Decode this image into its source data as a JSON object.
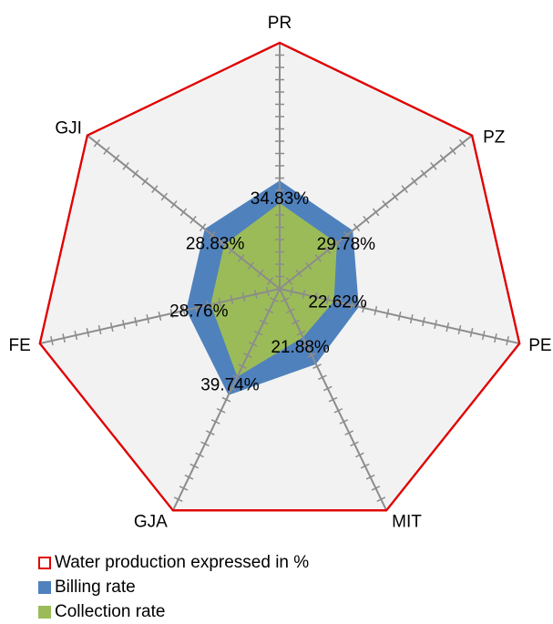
{
  "chart_data": {
    "type": "radar",
    "categories": [
      "PR",
      "PZ",
      "PE",
      "MIT",
      "GJA",
      "FE",
      "GJI"
    ],
    "max": 100,
    "tick_step": 5,
    "series": [
      {
        "name": "Water production expressed in %",
        "values": [
          100,
          100,
          100,
          100,
          100,
          100,
          100
        ],
        "style": "outline",
        "color": "#e00000"
      },
      {
        "name": "Billing rate",
        "values": [
          44,
          38,
          33,
          34,
          48,
          39,
          39
        ],
        "style": "fill",
        "color": "#4f81bd"
      },
      {
        "name": "Collection rate",
        "values": [
          34.83,
          29.78,
          22.62,
          21.88,
          39.74,
          28.76,
          28.83
        ],
        "style": "fill",
        "color": "#9bbb59"
      }
    ],
    "data_labels": [
      "34.83%",
      "29.78%",
      "22.62%",
      "21.88%",
      "39.74%",
      "28.76%",
      "28.83%"
    ],
    "plot_background": "#f2f2f2",
    "axis_color": "#8c8c8c",
    "legend_position": "bottom-left"
  }
}
